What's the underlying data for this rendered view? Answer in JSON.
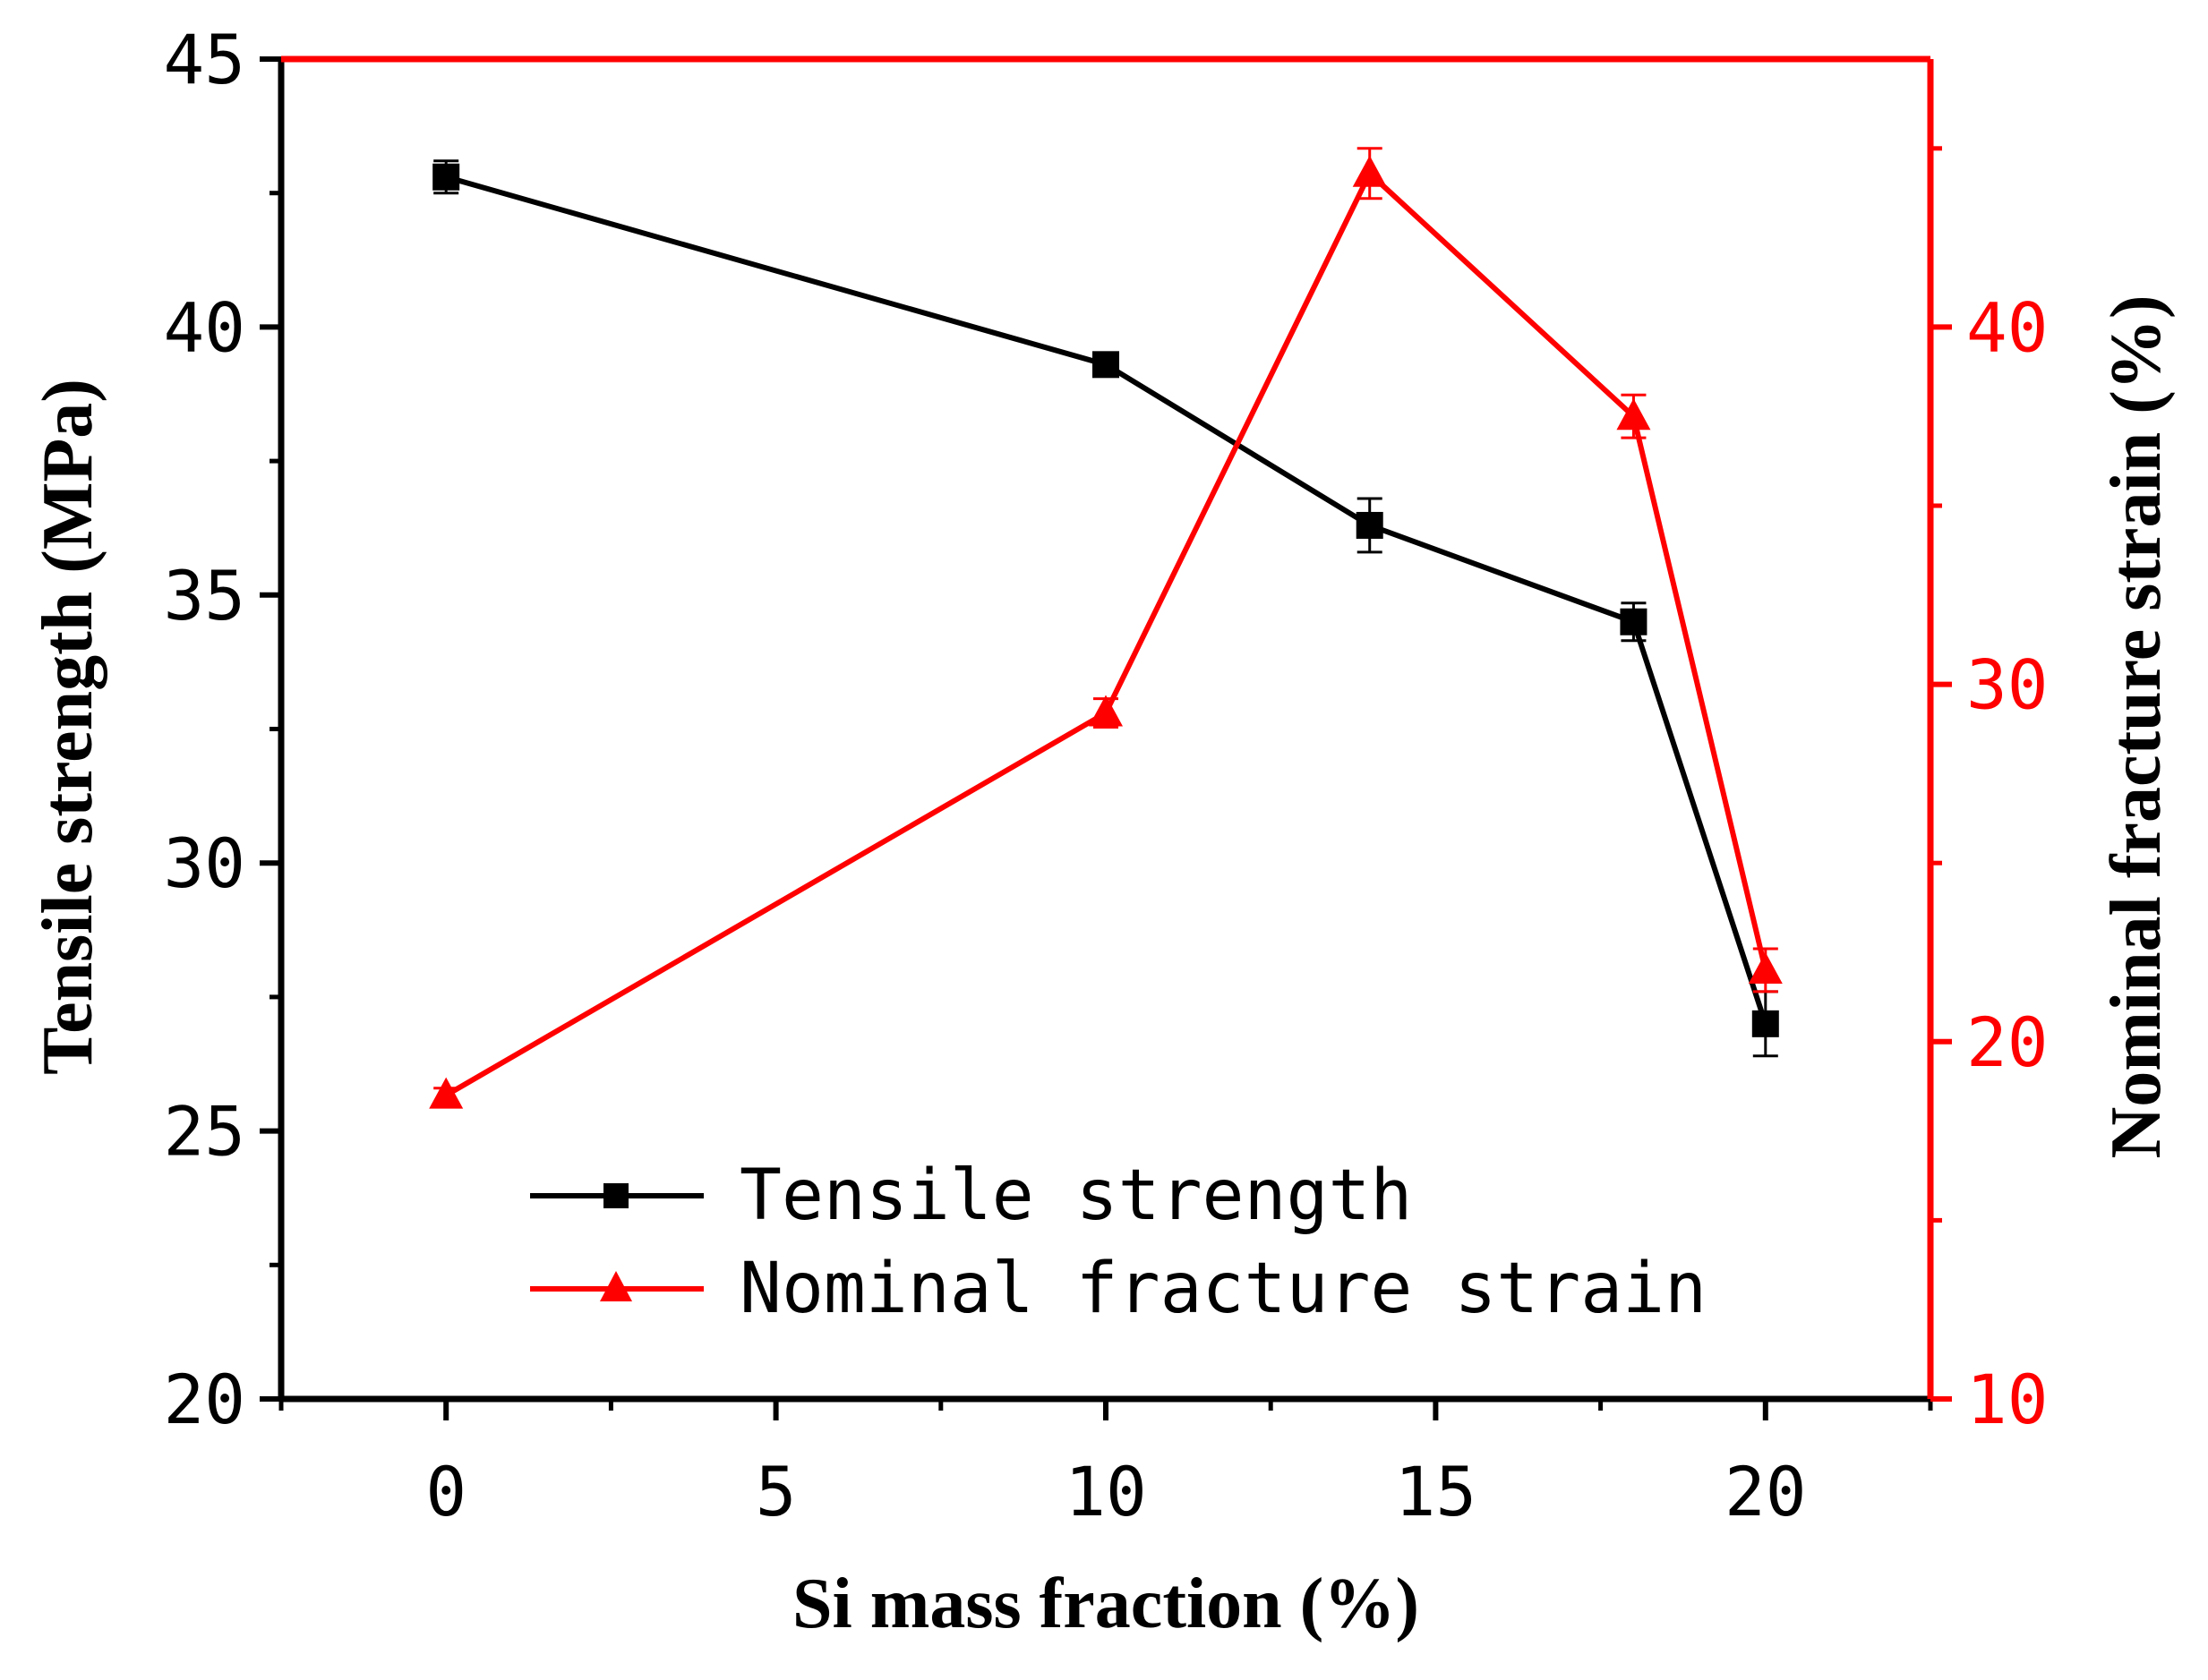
{
  "chart_data": {
    "type": "line",
    "x": [
      0,
      10,
      14,
      18,
      20
    ],
    "xlabel": "Si mass fraction (%)",
    "xlim": [
      -2.5,
      22.5
    ],
    "xticks": [
      "0",
      "5",
      "10",
      "15",
      "20"
    ],
    "y_left": {
      "label": "Tensile strength (MPa)",
      "lim": [
        20,
        45
      ],
      "ticks": [
        "20",
        "25",
        "30",
        "35",
        "40",
        "45"
      ],
      "color": "#000000"
    },
    "y_right": {
      "label": "Nominal fracture strain (%)",
      "lim": [
        10,
        47.5
      ],
      "ticks": [
        "10",
        "20",
        "30",
        "40"
      ],
      "color": "#ff0000"
    },
    "series": [
      {
        "name": "Tensile strength",
        "axis": "left",
        "marker": "square",
        "color": "#000000",
        "values": [
          42.8,
          39.3,
          36.3,
          34.5,
          27.0
        ],
        "errors": [
          0.3,
          0.15,
          0.5,
          0.35,
          0.6
        ]
      },
      {
        "name": "Nominal fracture strain",
        "axis": "right",
        "marker": "triangle",
        "color": "#ff0000",
        "values": [
          18.5,
          29.2,
          44.3,
          37.5,
          22.0
        ],
        "errors": [
          0.2,
          0.4,
          0.7,
          0.6,
          0.6
        ]
      }
    ],
    "legend": {
      "position": "bottom-center"
    }
  }
}
